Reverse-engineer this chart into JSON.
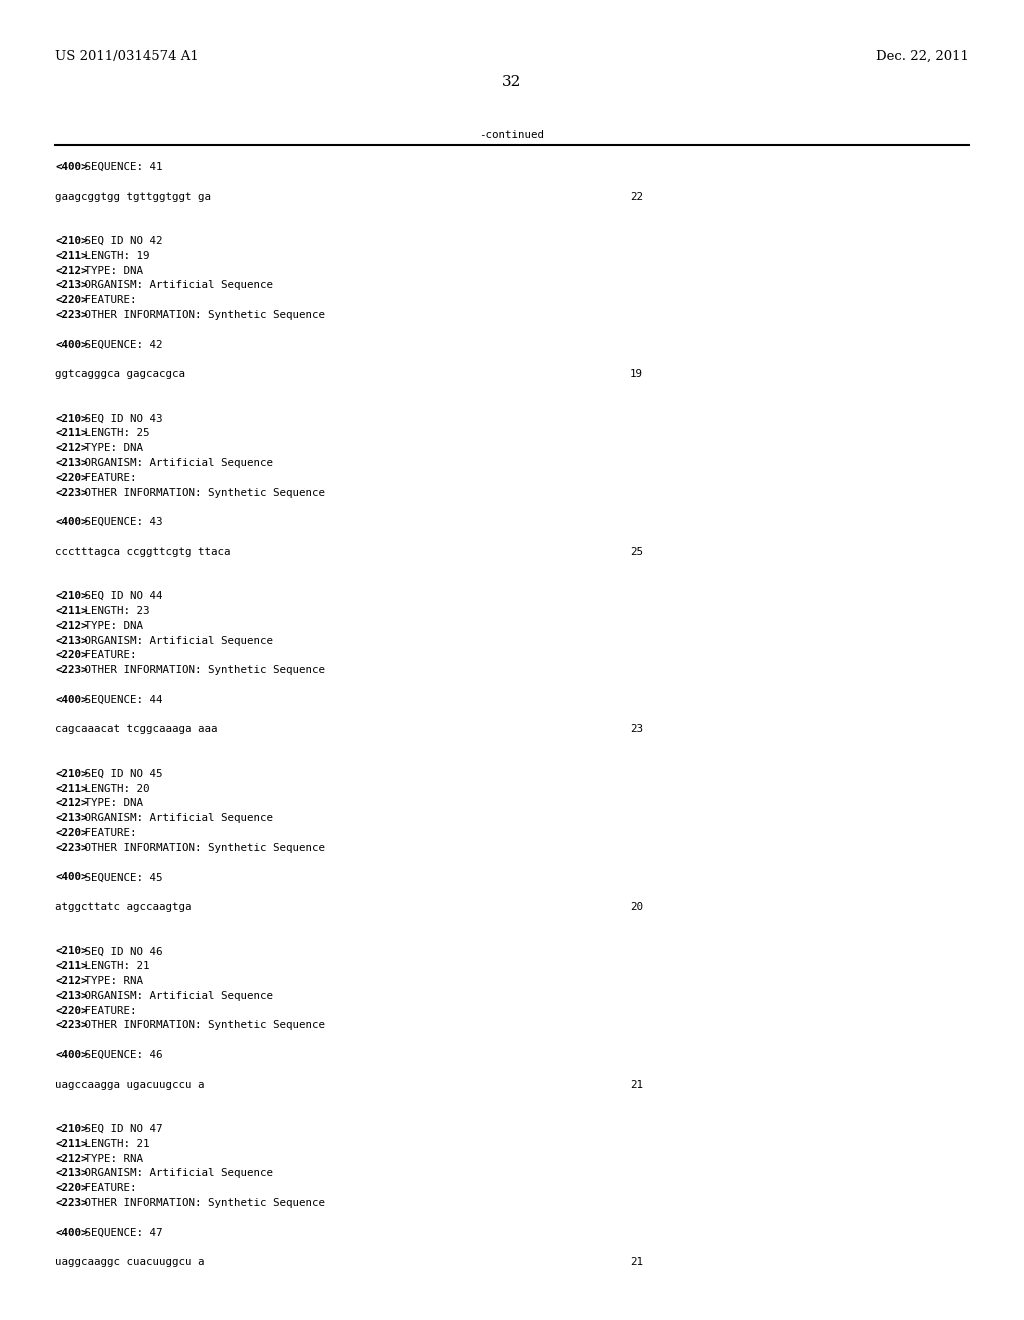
{
  "header_left": "US 2011/0314574 A1",
  "header_right": "Dec. 22, 2011",
  "page_number": "32",
  "continued_label": "-continued",
  "background_color": "#ffffff",
  "text_color": "#000000",
  "font_size_header": 9.5,
  "font_size_body": 7.8,
  "font_size_page": 11,
  "content_lines": [
    {
      "text": "<400> SEQUENCE: 41",
      "type": "tag"
    },
    {
      "text": "",
      "type": "blank"
    },
    {
      "text": "gaagcggtgg tgttggtggt ga",
      "type": "seq",
      "right_num": "22"
    },
    {
      "text": "",
      "type": "blank"
    },
    {
      "text": "",
      "type": "blank"
    },
    {
      "text": "<210> SEQ ID NO 42",
      "type": "tag"
    },
    {
      "text": "<211> LENGTH: 19",
      "type": "tag"
    },
    {
      "text": "<212> TYPE: DNA",
      "type": "tag"
    },
    {
      "text": "<213> ORGANISM: Artificial Sequence",
      "type": "tag"
    },
    {
      "text": "<220> FEATURE:",
      "type": "tag"
    },
    {
      "text": "<223> OTHER INFORMATION: Synthetic Sequence",
      "type": "tag"
    },
    {
      "text": "",
      "type": "blank"
    },
    {
      "text": "<400> SEQUENCE: 42",
      "type": "tag"
    },
    {
      "text": "",
      "type": "blank"
    },
    {
      "text": "ggtcagggca gagcacgca",
      "type": "seq",
      "right_num": "19"
    },
    {
      "text": "",
      "type": "blank"
    },
    {
      "text": "",
      "type": "blank"
    },
    {
      "text": "<210> SEQ ID NO 43",
      "type": "tag"
    },
    {
      "text": "<211> LENGTH: 25",
      "type": "tag"
    },
    {
      "text": "<212> TYPE: DNA",
      "type": "tag"
    },
    {
      "text": "<213> ORGANISM: Artificial Sequence",
      "type": "tag"
    },
    {
      "text": "<220> FEATURE:",
      "type": "tag"
    },
    {
      "text": "<223> OTHER INFORMATION: Synthetic Sequence",
      "type": "tag"
    },
    {
      "text": "",
      "type": "blank"
    },
    {
      "text": "<400> SEQUENCE: 43",
      "type": "tag"
    },
    {
      "text": "",
      "type": "blank"
    },
    {
      "text": "ccctttagca ccggttcgtg ttaca",
      "type": "seq",
      "right_num": "25"
    },
    {
      "text": "",
      "type": "blank"
    },
    {
      "text": "",
      "type": "blank"
    },
    {
      "text": "<210> SEQ ID NO 44",
      "type": "tag"
    },
    {
      "text": "<211> LENGTH: 23",
      "type": "tag"
    },
    {
      "text": "<212> TYPE: DNA",
      "type": "tag"
    },
    {
      "text": "<213> ORGANISM: Artificial Sequence",
      "type": "tag"
    },
    {
      "text": "<220> FEATURE:",
      "type": "tag"
    },
    {
      "text": "<223> OTHER INFORMATION: Synthetic Sequence",
      "type": "tag"
    },
    {
      "text": "",
      "type": "blank"
    },
    {
      "text": "<400> SEQUENCE: 44",
      "type": "tag"
    },
    {
      "text": "",
      "type": "blank"
    },
    {
      "text": "cagcaaacat tcggcaaaga aaa",
      "type": "seq",
      "right_num": "23"
    },
    {
      "text": "",
      "type": "blank"
    },
    {
      "text": "",
      "type": "blank"
    },
    {
      "text": "<210> SEQ ID NO 45",
      "type": "tag"
    },
    {
      "text": "<211> LENGTH: 20",
      "type": "tag"
    },
    {
      "text": "<212> TYPE: DNA",
      "type": "tag"
    },
    {
      "text": "<213> ORGANISM: Artificial Sequence",
      "type": "tag"
    },
    {
      "text": "<220> FEATURE:",
      "type": "tag"
    },
    {
      "text": "<223> OTHER INFORMATION: Synthetic Sequence",
      "type": "tag"
    },
    {
      "text": "",
      "type": "blank"
    },
    {
      "text": "<400> SEQUENCE: 45",
      "type": "tag"
    },
    {
      "text": "",
      "type": "blank"
    },
    {
      "text": "atggcttatc agccaagtga",
      "type": "seq",
      "right_num": "20"
    },
    {
      "text": "",
      "type": "blank"
    },
    {
      "text": "",
      "type": "blank"
    },
    {
      "text": "<210> SEQ ID NO 46",
      "type": "tag"
    },
    {
      "text": "<211> LENGTH: 21",
      "type": "tag"
    },
    {
      "text": "<212> TYPE: RNA",
      "type": "tag"
    },
    {
      "text": "<213> ORGANISM: Artificial Sequence",
      "type": "tag"
    },
    {
      "text": "<220> FEATURE:",
      "type": "tag"
    },
    {
      "text": "<223> OTHER INFORMATION: Synthetic Sequence",
      "type": "tag"
    },
    {
      "text": "",
      "type": "blank"
    },
    {
      "text": "<400> SEQUENCE: 46",
      "type": "tag"
    },
    {
      "text": "",
      "type": "blank"
    },
    {
      "text": "uagccaagga ugacuugccu a",
      "type": "seq",
      "right_num": "21"
    },
    {
      "text": "",
      "type": "blank"
    },
    {
      "text": "",
      "type": "blank"
    },
    {
      "text": "<210> SEQ ID NO 47",
      "type": "tag"
    },
    {
      "text": "<211> LENGTH: 21",
      "type": "tag"
    },
    {
      "text": "<212> TYPE: RNA",
      "type": "tag"
    },
    {
      "text": "<213> ORGANISM: Artificial Sequence",
      "type": "tag"
    },
    {
      "text": "<220> FEATURE:",
      "type": "tag"
    },
    {
      "text": "<223> OTHER INFORMATION: Synthetic Sequence",
      "type": "tag"
    },
    {
      "text": "",
      "type": "blank"
    },
    {
      "text": "<400> SEQUENCE: 47",
      "type": "tag"
    },
    {
      "text": "",
      "type": "blank"
    },
    {
      "text": "uaggcaaggc cuacuuggcu a",
      "type": "seq",
      "right_num": "21"
    }
  ]
}
